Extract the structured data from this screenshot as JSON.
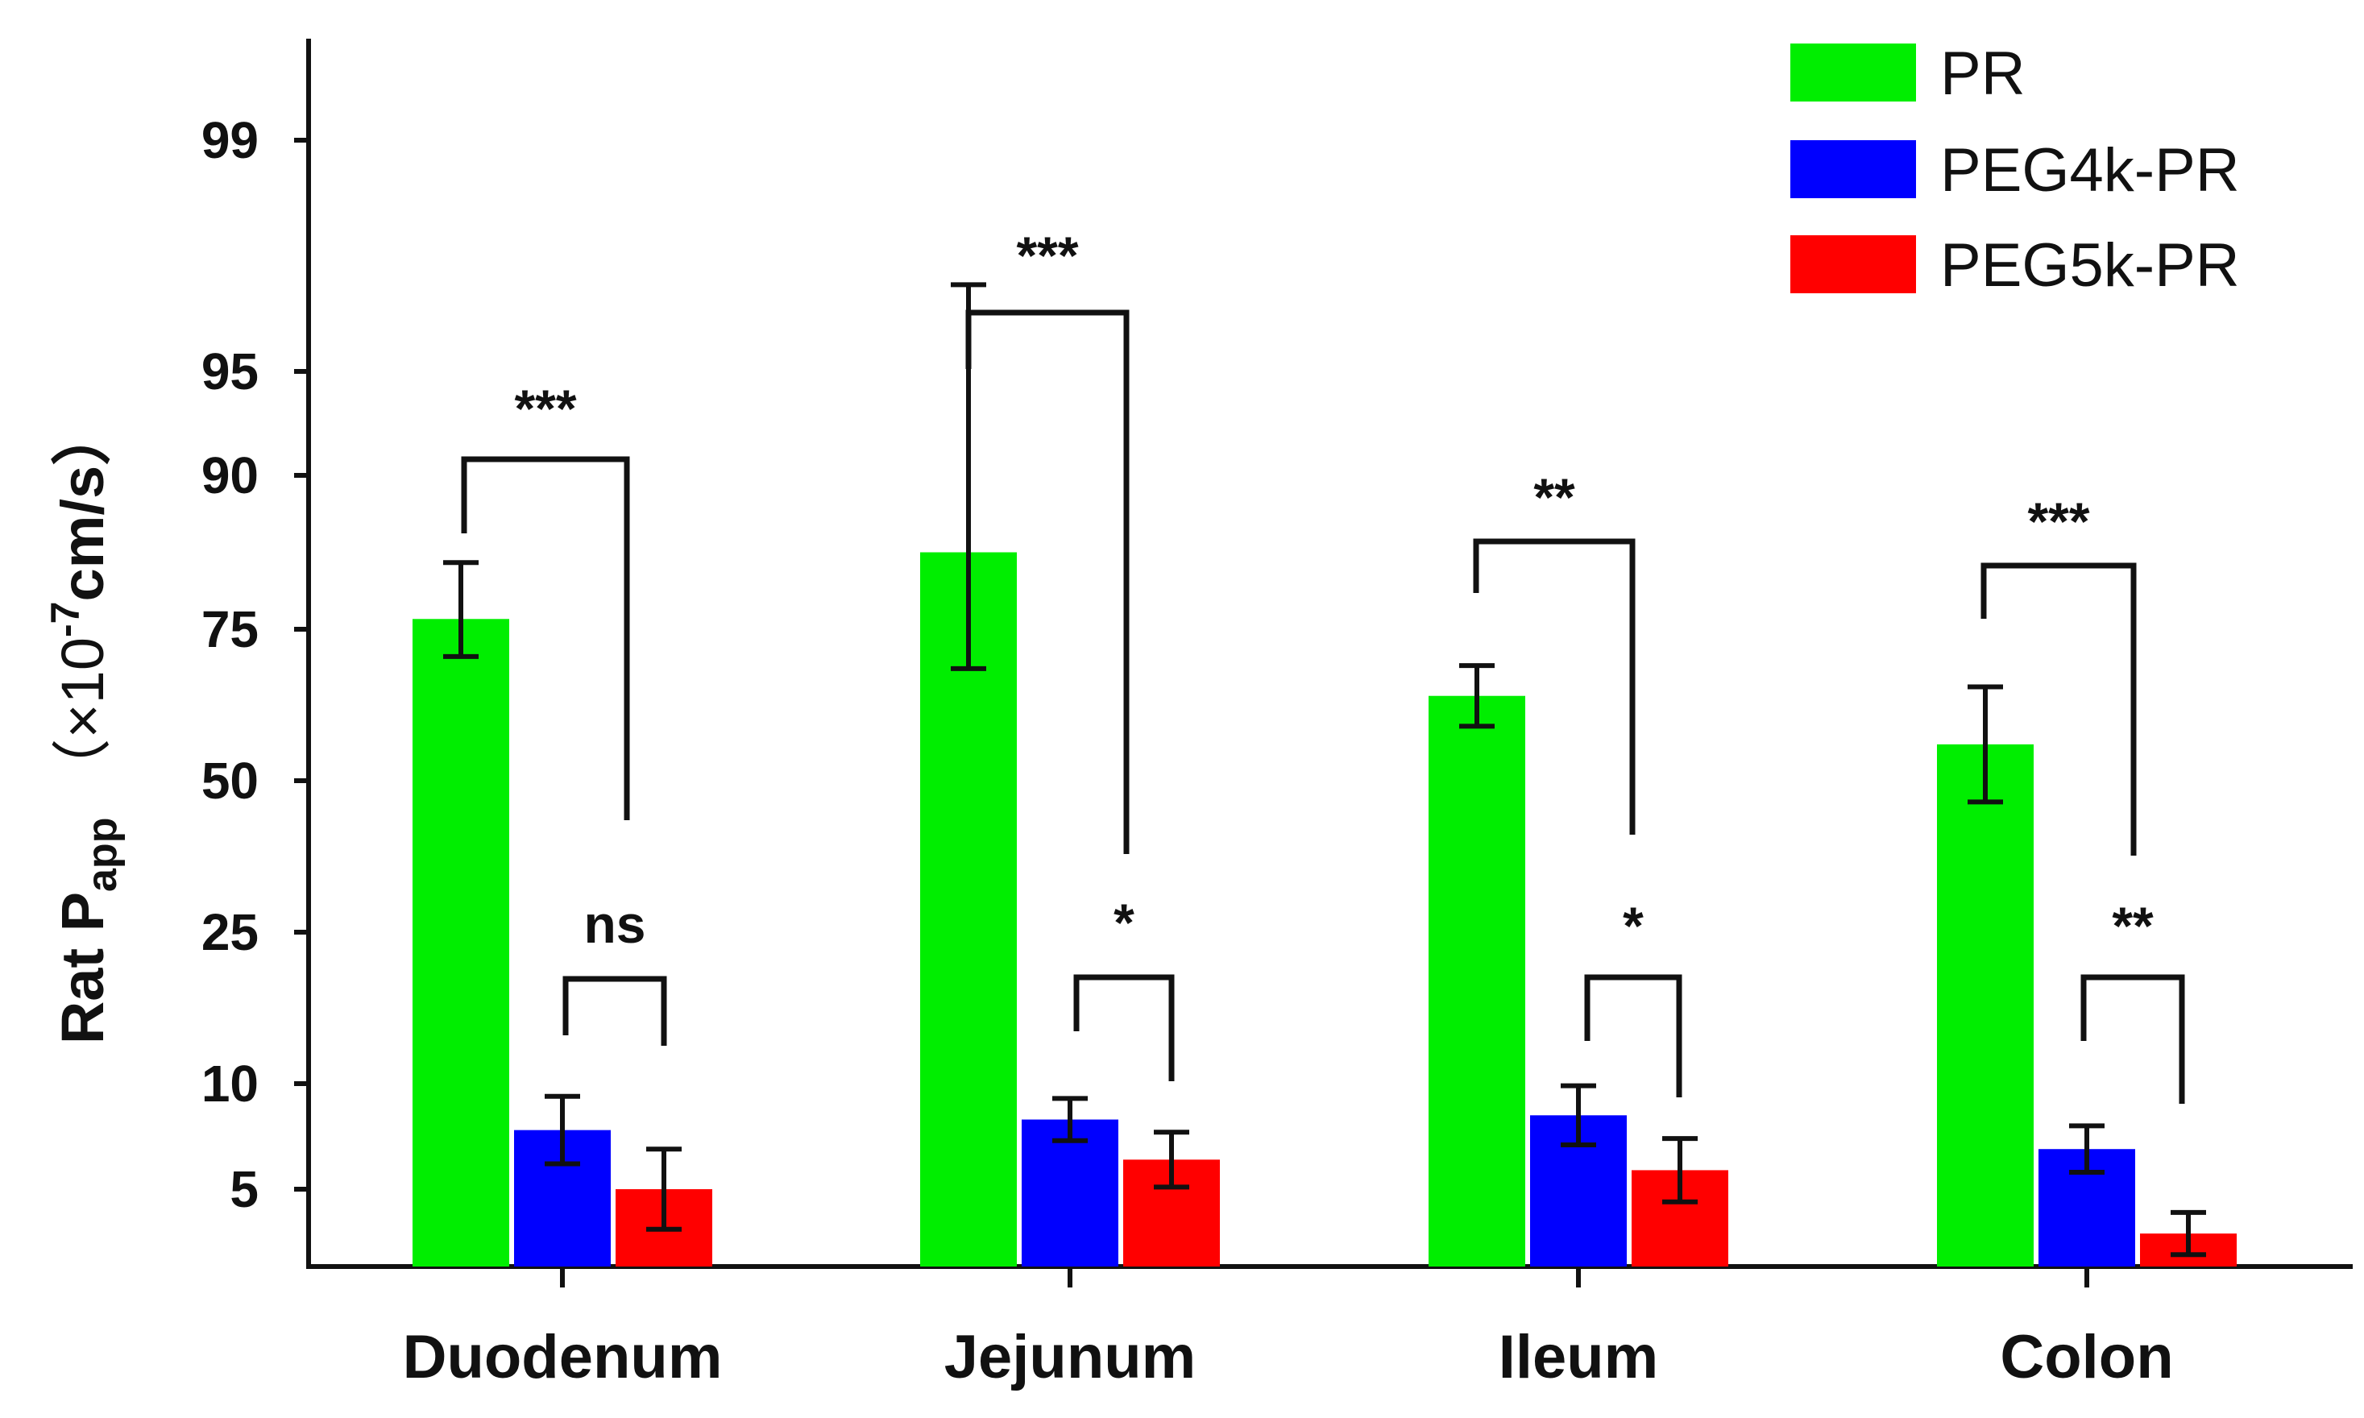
{
  "chart_data": {
    "type": "bar",
    "title": "",
    "xlabel": "",
    "ylabel": {
      "main": "Rat P",
      "subscript": "app",
      "unit_open": "（×10",
      "superscript": "-7",
      "unit_close": "cm/s）"
    },
    "y_scale": "broken",
    "yticks": [
      5,
      10,
      25,
      50,
      75,
      90,
      95,
      99
    ],
    "ylim": [
      2,
      99
    ],
    "categories": [
      "Duodenum",
      "Jejunum",
      "Ileum",
      "Colon"
    ],
    "series": [
      {
        "name": "PR",
        "color": "#00ee00",
        "values": [
          76.0,
          82.5,
          64.0,
          56.0
        ],
        "errors": [
          5.5,
          14.0,
          5.0,
          9.5
        ]
      },
      {
        "name": "PEG4k-PR",
        "color": "#0000ff",
        "values": [
          7.8,
          8.3,
          8.5,
          6.9
        ],
        "errors": [
          1.6,
          1.0,
          1.4,
          1.1
        ]
      },
      {
        "name": "PEG5k-PR",
        "color": "#ff0000",
        "values": [
          5.0,
          6.4,
          5.9,
          2.9
        ],
        "errors": [
          1.9,
          1.3,
          1.5,
          1.0
        ]
      }
    ],
    "legend": {
      "position": "top-right"
    },
    "significance": [
      {
        "category": "Duodenum",
        "pair": "PR vs PEG5k-PR",
        "label": "***"
      },
      {
        "category": "Duodenum",
        "pair": "PEG4k-PR vs PEG5k-PR",
        "label": "ns"
      },
      {
        "category": "Jejunum",
        "pair": "PR vs PEG5k-PR",
        "label": "***"
      },
      {
        "category": "Jejunum",
        "pair": "PEG4k-PR vs PEG5k-PR",
        "label": "*"
      },
      {
        "category": "Ileum",
        "pair": "PR vs PEG5k-PR",
        "label": "**"
      },
      {
        "category": "Ileum",
        "pair": "PEG4k-PR vs PEG5k-PR",
        "label": "*"
      },
      {
        "category": "Colon",
        "pair": "PR vs PEG5k-PR",
        "label": "***"
      },
      {
        "category": "Colon",
        "pair": "PEG4k-PR vs PEG5k-PR",
        "label": "**"
      }
    ]
  }
}
